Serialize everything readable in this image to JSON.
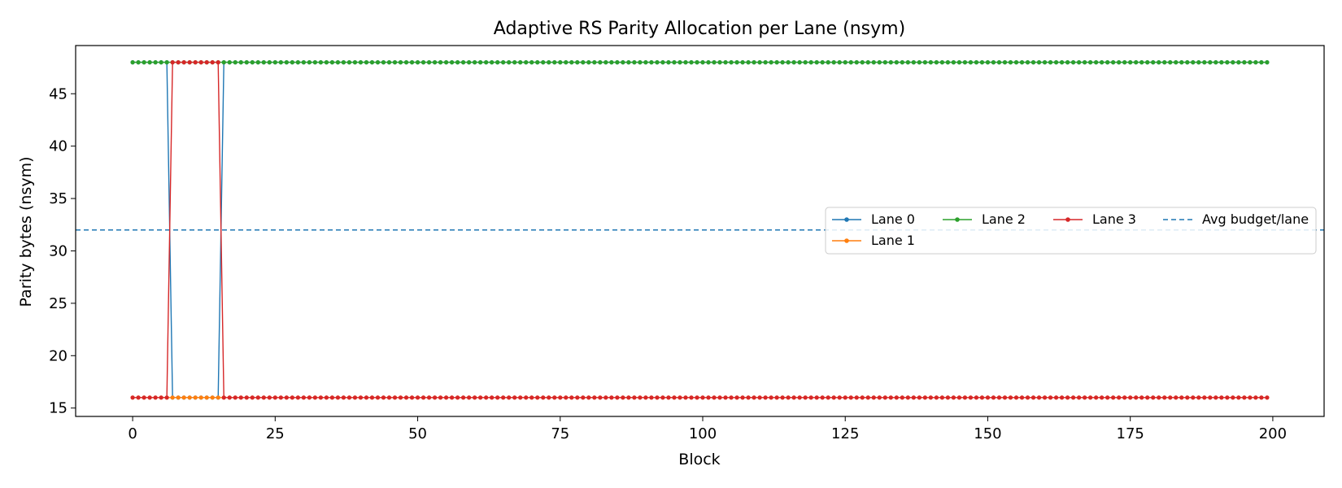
{
  "chart_data": {
    "type": "line",
    "title": "Adaptive RS Parity Allocation per Lane (nsym)",
    "xlabel": "Block",
    "ylabel": "Parity bytes (nsym)",
    "xlim": [
      -10,
      209
    ],
    "ylim": [
      14.2,
      49.6
    ],
    "xticks": [
      0,
      25,
      50,
      75,
      100,
      125,
      150,
      175,
      200
    ],
    "yticks": [
      15,
      20,
      25,
      30,
      35,
      40,
      45
    ],
    "n_blocks": 200,
    "grid": false,
    "legend_position": "center-right",
    "legend_columns": 4,
    "series": [
      {
        "name": "Lane 0",
        "color": "#1f77b4",
        "marker": "dot",
        "default": 48,
        "overrides": [
          {
            "from": 7,
            "to": 15,
            "value": 16
          }
        ]
      },
      {
        "name": "Lane 1",
        "color": "#ff7f0e",
        "marker": "dot",
        "default": 16,
        "overrides": []
      },
      {
        "name": "Lane 2",
        "color": "#2ca02c",
        "marker": "dot",
        "default": 48,
        "overrides": []
      },
      {
        "name": "Lane 3",
        "color": "#d62728",
        "marker": "dot",
        "default": 16,
        "overrides": [
          {
            "from": 7,
            "to": 15,
            "value": 48
          }
        ]
      }
    ],
    "reference_lines": [
      {
        "name": "Avg budget/lane",
        "y": 32,
        "color": "#1f77b4",
        "style": "dashed"
      }
    ]
  }
}
